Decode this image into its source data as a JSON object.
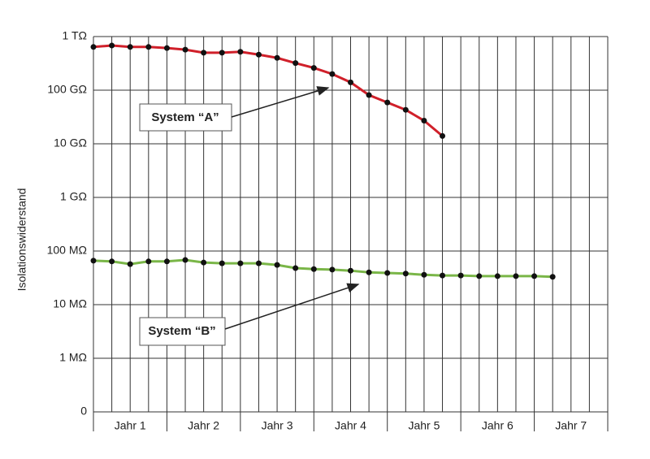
{
  "chart_data": {
    "type": "line",
    "y_label": "Isolationswiderstand",
    "log_y": true,
    "grid": true,
    "ylim": [
      100000,
      1000000000000
    ],
    "y_origin_label": "0",
    "yticks": [
      {
        "value": 1000000,
        "label": "1 MΩ"
      },
      {
        "value": 10000000,
        "label": "10 MΩ"
      },
      {
        "value": 100000000,
        "label": "100 MΩ"
      },
      {
        "value": 1000000000,
        "label": "1 GΩ"
      },
      {
        "value": 10000000000,
        "label": "10 GΩ"
      },
      {
        "value": 100000000000,
        "label": "100 GΩ"
      },
      {
        "value": 1000000000000,
        "label": "1 TΩ"
      }
    ],
    "xlim": [
      0,
      7
    ],
    "xticks": [
      0,
      1,
      2,
      3,
      4,
      5,
      6,
      7
    ],
    "xgrid": [
      0,
      0.25,
      0.5,
      0.75,
      1,
      1.25,
      1.5,
      1.75,
      2,
      2.25,
      2.5,
      2.75,
      3,
      3.25,
      3.5,
      3.75,
      4,
      4.25,
      4.5,
      4.75,
      5,
      5.25,
      5.5,
      5.75,
      6,
      6.25,
      6.5,
      6.75,
      7
    ],
    "categories": [
      "Jahr 1",
      "Jahr 2",
      "Jahr 3",
      "Jahr 4",
      "Jahr 5",
      "Jahr 6",
      "Jahr 7"
    ],
    "x": [
      0,
      0.25,
      0.5,
      0.75,
      1,
      1.25,
      1.5,
      1.75,
      2,
      2.25,
      2.5,
      2.75,
      3,
      3.25,
      3.5,
      3.75,
      4,
      4.25,
      4.5,
      4.75,
      5,
      5.25,
      5.5,
      5.75,
      6,
      6.25
    ],
    "series": [
      {
        "name": "System “A”",
        "color": "#d0202a",
        "values": [
          640000000000,
          680000000000,
          640000000000,
          640000000000,
          610000000000,
          570000000000,
          500000000000,
          500000000000,
          520000000000,
          460000000000,
          400000000000,
          320000000000,
          260000000000,
          200000000000,
          140000000000,
          81000000000,
          59000000000,
          43000000000,
          27000000000,
          14000000000,
          null,
          null,
          null,
          null,
          null,
          null
        ]
      },
      {
        "name": "System “B”",
        "color": "#7ab648",
        "values": [
          66000000,
          64000000,
          57000000,
          64000000,
          64000000,
          68000000,
          61000000,
          59000000,
          59000000,
          59000000,
          55000000,
          48000000,
          46000000,
          45000000,
          43000000,
          40000000,
          39000000,
          38000000,
          36000000,
          35000000,
          35000000,
          34000000,
          34000000,
          34000000,
          34000000,
          33000000
        ]
      }
    ]
  }
}
